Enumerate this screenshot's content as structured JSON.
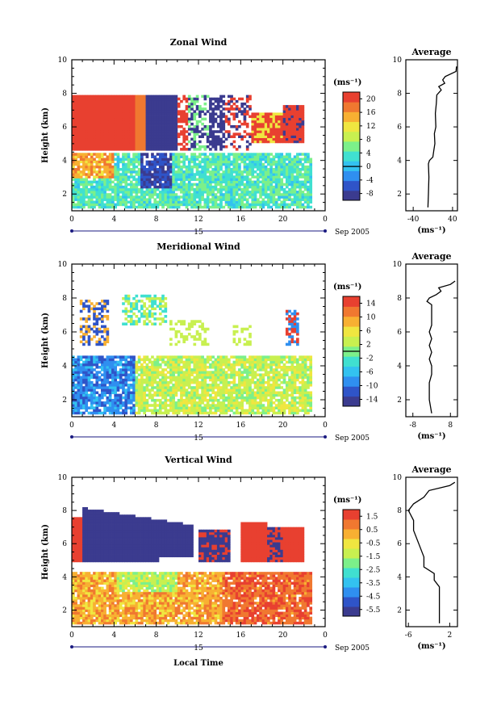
{
  "chart_data": [
    {
      "type": "heatmap",
      "title": "Zonal Wind",
      "ylabel": "Height (km)",
      "xlabel": "",
      "xlim": [
        0,
        24
      ],
      "ylim": [
        1,
        10
      ],
      "xticks": [
        "0",
        "4",
        "8",
        "12",
        "16",
        "20",
        "0"
      ],
      "yticks": [
        "2",
        "4",
        "6",
        "8",
        "10"
      ],
      "date_day": "15",
      "date_label": "Sep 2005",
      "colorbar": {
        "unit": "(ms⁻¹)",
        "ticks": [
          "20",
          "16",
          "12",
          "8",
          "4",
          "0",
          "-4",
          "-8"
        ],
        "min": -10,
        "max": 22,
        "contour": 0
      },
      "average": {
        "title": "Average",
        "xlabel": "(ms⁻¹)",
        "xlim": [
          -55,
          50
        ],
        "xticks": [
          "-40",
          "40"
        ],
        "yticks": [
          "2",
          "4",
          "6",
          "8",
          "10"
        ],
        "profile": [
          [
            1.2,
            -10
          ],
          [
            2.0,
            -9
          ],
          [
            3.0,
            -8
          ],
          [
            3.8,
            -9
          ],
          [
            4.0,
            -7
          ],
          [
            4.2,
            0
          ],
          [
            4.6,
            2
          ],
          [
            5.0,
            4
          ],
          [
            5.6,
            3
          ],
          [
            6.0,
            6
          ],
          [
            6.8,
            5
          ],
          [
            7.4,
            7
          ],
          [
            7.9,
            8
          ],
          [
            8.2,
            17
          ],
          [
            8.4,
            12
          ],
          [
            8.6,
            24
          ],
          [
            8.8,
            20
          ],
          [
            9.0,
            25
          ],
          [
            9.3,
            47
          ],
          [
            9.6,
            48
          ]
        ]
      }
    },
    {
      "type": "heatmap",
      "title": "Meridional Wind",
      "ylabel": "Height (km)",
      "xlabel": "",
      "xlim": [
        0,
        24
      ],
      "ylim": [
        1,
        10
      ],
      "xticks": [
        "0",
        "4",
        "8",
        "12",
        "16",
        "20",
        "0"
      ],
      "yticks": [
        "2",
        "4",
        "6",
        "8",
        "10"
      ],
      "date_day": "15",
      "date_label": "Sep 2005",
      "colorbar": {
        "unit": "(ms⁻¹)",
        "ticks": [
          "14",
          "10",
          "6",
          "2",
          "-2",
          "-6",
          "-10",
          "-14"
        ],
        "min": -16,
        "max": 16,
        "contour": 0
      },
      "average": {
        "title": "Average",
        "xlabel": "(ms⁻¹)",
        "xlim": [
          -11,
          11
        ],
        "xticks": [
          "-8",
          "8"
        ],
        "yticks": [
          "2",
          "4",
          "6",
          "8",
          "10"
        ],
        "profile": [
          [
            1.2,
            0
          ],
          [
            2.0,
            -1
          ],
          [
            3.0,
            -1
          ],
          [
            3.5,
            0
          ],
          [
            4.0,
            0
          ],
          [
            4.4,
            -1
          ],
          [
            4.8,
            0
          ],
          [
            5.2,
            -1
          ],
          [
            5.6,
            0
          ],
          [
            6.0,
            -1
          ],
          [
            6.4,
            0
          ],
          [
            6.8,
            0
          ],
          [
            7.2,
            0
          ],
          [
            7.6,
            0
          ],
          [
            7.8,
            -2
          ],
          [
            8.0,
            -1
          ],
          [
            8.2,
            2
          ],
          [
            8.4,
            4
          ],
          [
            8.6,
            3
          ],
          [
            8.8,
            8
          ],
          [
            9.0,
            10
          ]
        ]
      }
    },
    {
      "type": "heatmap",
      "title": "Vertical Wind",
      "ylabel": "Height (km)",
      "xlabel": "Local Time",
      "xlim": [
        0,
        24
      ],
      "ylim": [
        1,
        10
      ],
      "xticks": [
        "0",
        "4",
        "8",
        "12",
        "16",
        "20",
        "0"
      ],
      "yticks": [
        "2",
        "4",
        "6",
        "8",
        "10"
      ],
      "date_day": "15",
      "date_label": "Sep 2005",
      "colorbar": {
        "unit": "(ms⁻¹)",
        "ticks": [
          "1.5",
          "0.5",
          "-0.5",
          "-1.5",
          "-2.5",
          "-3.5",
          "-4.5",
          "-5.5"
        ],
        "min": -6,
        "max": 2
      },
      "average": {
        "title": "Average",
        "xlabel": "(ms⁻¹)",
        "xlim": [
          -6.5,
          3.5
        ],
        "xticks": [
          "-6",
          "2"
        ],
        "yticks": [
          "2",
          "4",
          "6",
          "8",
          "10"
        ],
        "profile": [
          [
            1.2,
            0
          ],
          [
            2.0,
            0
          ],
          [
            2.8,
            0
          ],
          [
            3.4,
            0
          ],
          [
            3.8,
            -1
          ],
          [
            4.2,
            -1
          ],
          [
            4.6,
            -3
          ],
          [
            5.2,
            -3
          ],
          [
            6.0,
            -4
          ],
          [
            6.8,
            -5
          ],
          [
            7.4,
            -5
          ],
          [
            8.0,
            -6
          ],
          [
            8.4,
            -5
          ],
          [
            8.8,
            -3
          ],
          [
            9.2,
            -2
          ],
          [
            9.5,
            2
          ],
          [
            9.7,
            3
          ]
        ]
      }
    }
  ]
}
